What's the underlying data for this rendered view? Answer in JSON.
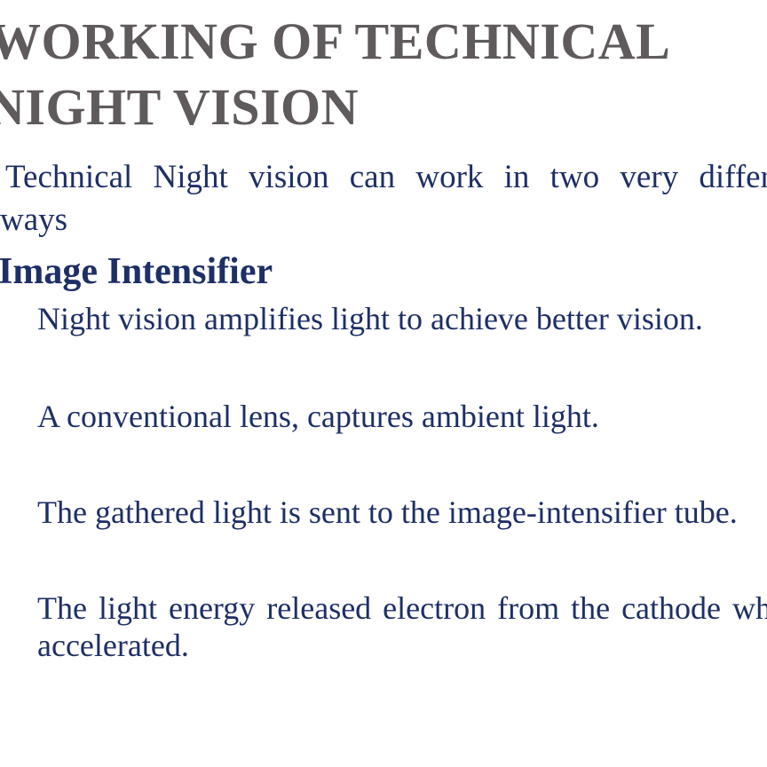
{
  "slide": {
    "title_lines": [
      "WORKING OF TECHNICAL",
      "NIGHT VISION"
    ],
    "intro_text": "Technical Night vision can work in two very different",
    "intro_continuation": "ways",
    "section_heading": "Image Intensifier",
    "bullets": [
      "Night vision amplifies  light to achieve better vision.",
      "A conventional lens, captures ambient light.",
      "The gathered light is sent to the image-intensifier tube.",
      "The light energy released electron from the cathode which is",
      "accelerated."
    ]
  }
}
